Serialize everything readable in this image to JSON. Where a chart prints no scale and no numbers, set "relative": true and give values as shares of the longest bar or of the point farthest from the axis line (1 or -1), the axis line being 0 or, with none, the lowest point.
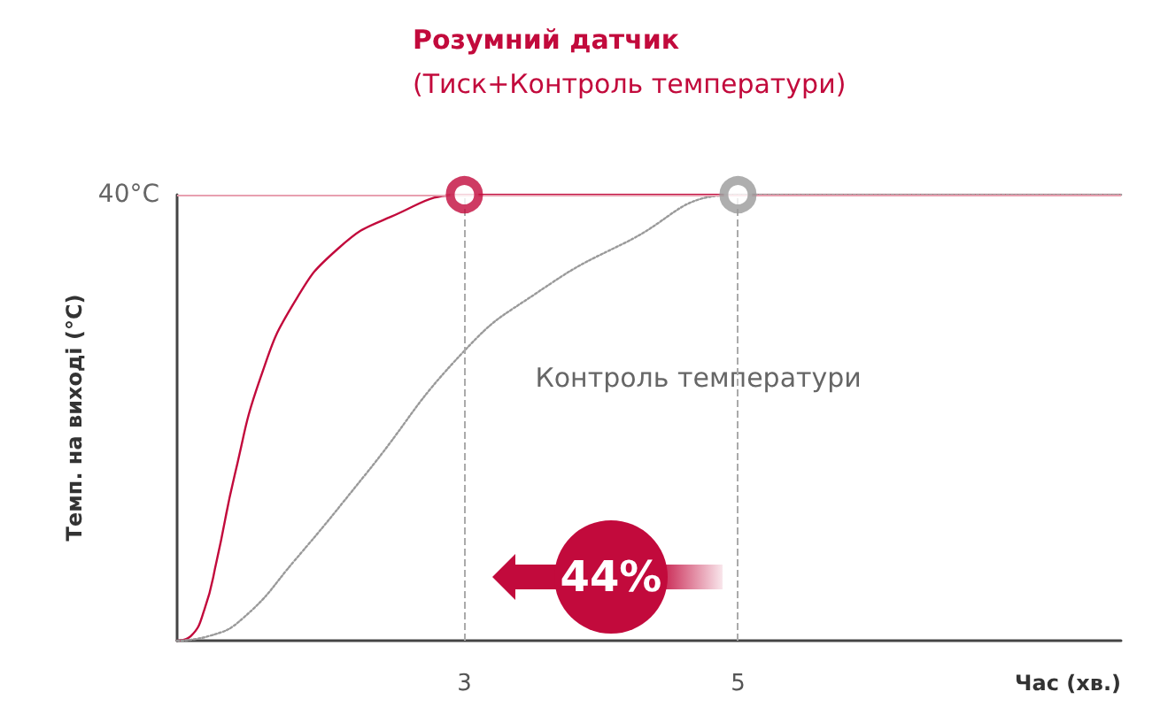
{
  "chart_data": {
    "type": "line",
    "title": "Розумний датчик",
    "subtitle": "(Тиск+Контроль температури)",
    "ylabel": "Темп. на виході (°C)",
    "xlabel": "Час (хв.)",
    "relative": true,
    "xlim": [
      0.9,
      7.8
    ],
    "xticks": [
      3,
      5
    ],
    "grid": false,
    "legend": false,
    "series": [
      {
        "color": "#c20a3c",
        "line_style": "solid",
        "x": [
          0.9,
          1.0,
          1.1,
          1.19,
          1.32,
          1.51,
          1.76,
          2.08,
          2.46,
          3.0,
          7.8
        ],
        "values": [
          0,
          0.01,
          0.07,
          0.18,
          0.37,
          0.59,
          0.76,
          0.88,
          0.95,
          1,
          1
        ]
      },
      {
        "name": "Контроль температури",
        "color": "#9a9a9a",
        "line_style": "dotted",
        "x": [
          0.9,
          1.13,
          1.38,
          1.76,
          2.27,
          3.0,
          3.53,
          4.16,
          5.0,
          7.8
        ],
        "values": [
          0,
          0.01,
          0.05,
          0.18,
          0.37,
          0.65,
          0.78,
          0.89,
          1,
          1
        ]
      },
      {
        "type": "scatter",
        "marker": "circle",
        "color": "#c20a3c",
        "x": [
          3
        ],
        "values": [
          1
        ]
      },
      {
        "type": "scatter",
        "marker": "circle",
        "color": "#9a9a9a",
        "x": [
          5
        ],
        "values": [
          1
        ]
      }
    ],
    "ref_lines": [
      {
        "axis": "y",
        "value": 1,
        "label": "40°C",
        "color": "#e8a0b0",
        "line_style": "solid"
      },
      {
        "axis": "x",
        "value": 3,
        "label": null,
        "color": "#aaaaaa",
        "line_style": "dashed"
      },
      {
        "axis": "x",
        "value": 5,
        "label": null,
        "color": "#aaaaaa",
        "line_style": "dashed"
      }
    ],
    "annotations": [
      "44%"
    ]
  }
}
